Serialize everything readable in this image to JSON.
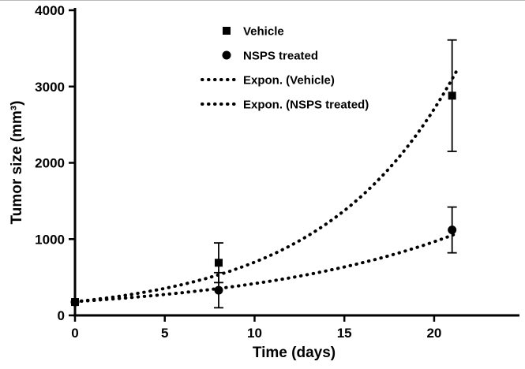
{
  "colors": {
    "fg": "#000000",
    "bg": "#ffffff"
  },
  "chart_data": {
    "type": "scatter",
    "title": "",
    "xlabel": "Time (days)",
    "ylabel": "Tumor size (mm³)",
    "xlim": [
      0,
      24.4
    ],
    "ylim": [
      0,
      4000
    ],
    "x_ticks": [
      0,
      5,
      10,
      15,
      20
    ],
    "y_ticks": [
      0,
      1000,
      2000,
      3000,
      4000
    ],
    "grid": false,
    "legend_position": "top-center-inside",
    "series": [
      {
        "name": "Vehicle",
        "marker": "square",
        "x": [
          0,
          8,
          21
        ],
        "y": [
          175,
          690,
          2880
        ],
        "yerr": [
          0,
          260,
          730
        ]
      },
      {
        "name": "NSPS treated",
        "marker": "circle",
        "x": [
          0,
          8,
          21
        ],
        "y": [
          175,
          330,
          1120
        ],
        "yerr": [
          0,
          230,
          300
        ]
      }
    ],
    "trendlines": [
      {
        "name": "Expon. (Vehicle)",
        "style": "dotted",
        "y0": 180,
        "k": 0.1355,
        "t_end": 21.4
      },
      {
        "name": "Expon. (NSPS treated)",
        "style": "dotted",
        "y0": 180,
        "k": 0.084,
        "t_end": 21.4
      }
    ],
    "legend": [
      {
        "label": "Vehicle",
        "marker": "square"
      },
      {
        "label": "NSPS treated",
        "marker": "circle"
      },
      {
        "label": "Expon. (Vehicle)",
        "marker": "dotted-line"
      },
      {
        "label": "Expon. (NSPS treated)",
        "marker": "dotted-line"
      }
    ]
  }
}
